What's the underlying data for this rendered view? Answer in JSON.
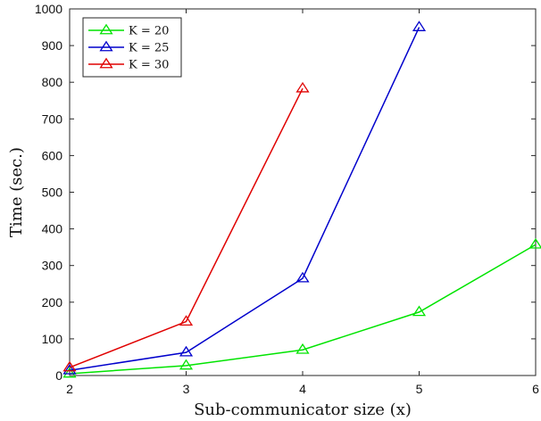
{
  "chart_data": {
    "type": "line",
    "title": "",
    "xlabel": "Sub-communicator size (x)",
    "ylabel": "Time (sec.)",
    "xlim": [
      2,
      6
    ],
    "ylim": [
      0,
      1000
    ],
    "xticks": [
      2,
      3,
      4,
      5,
      6
    ],
    "yticks": [
      0,
      100,
      200,
      300,
      400,
      500,
      600,
      700,
      800,
      900,
      1000
    ],
    "grid": false,
    "legend": {
      "placement": "top-left"
    },
    "series": [
      {
        "name": "K = 20",
        "color": "#00e400",
        "marker": "triangle",
        "x": [
          2,
          3,
          4,
          5,
          6
        ],
        "y": [
          5,
          27,
          70,
          173,
          357
        ]
      },
      {
        "name": "K = 25",
        "color": "#0000cc",
        "marker": "triangle",
        "x": [
          2,
          3,
          4,
          5
        ],
        "y": [
          14,
          63,
          265,
          950
        ]
      },
      {
        "name": "K = 30",
        "color": "#e00000",
        "marker": "triangle",
        "x": [
          2,
          3,
          4
        ],
        "y": [
          22,
          147,
          783
        ]
      }
    ]
  }
}
